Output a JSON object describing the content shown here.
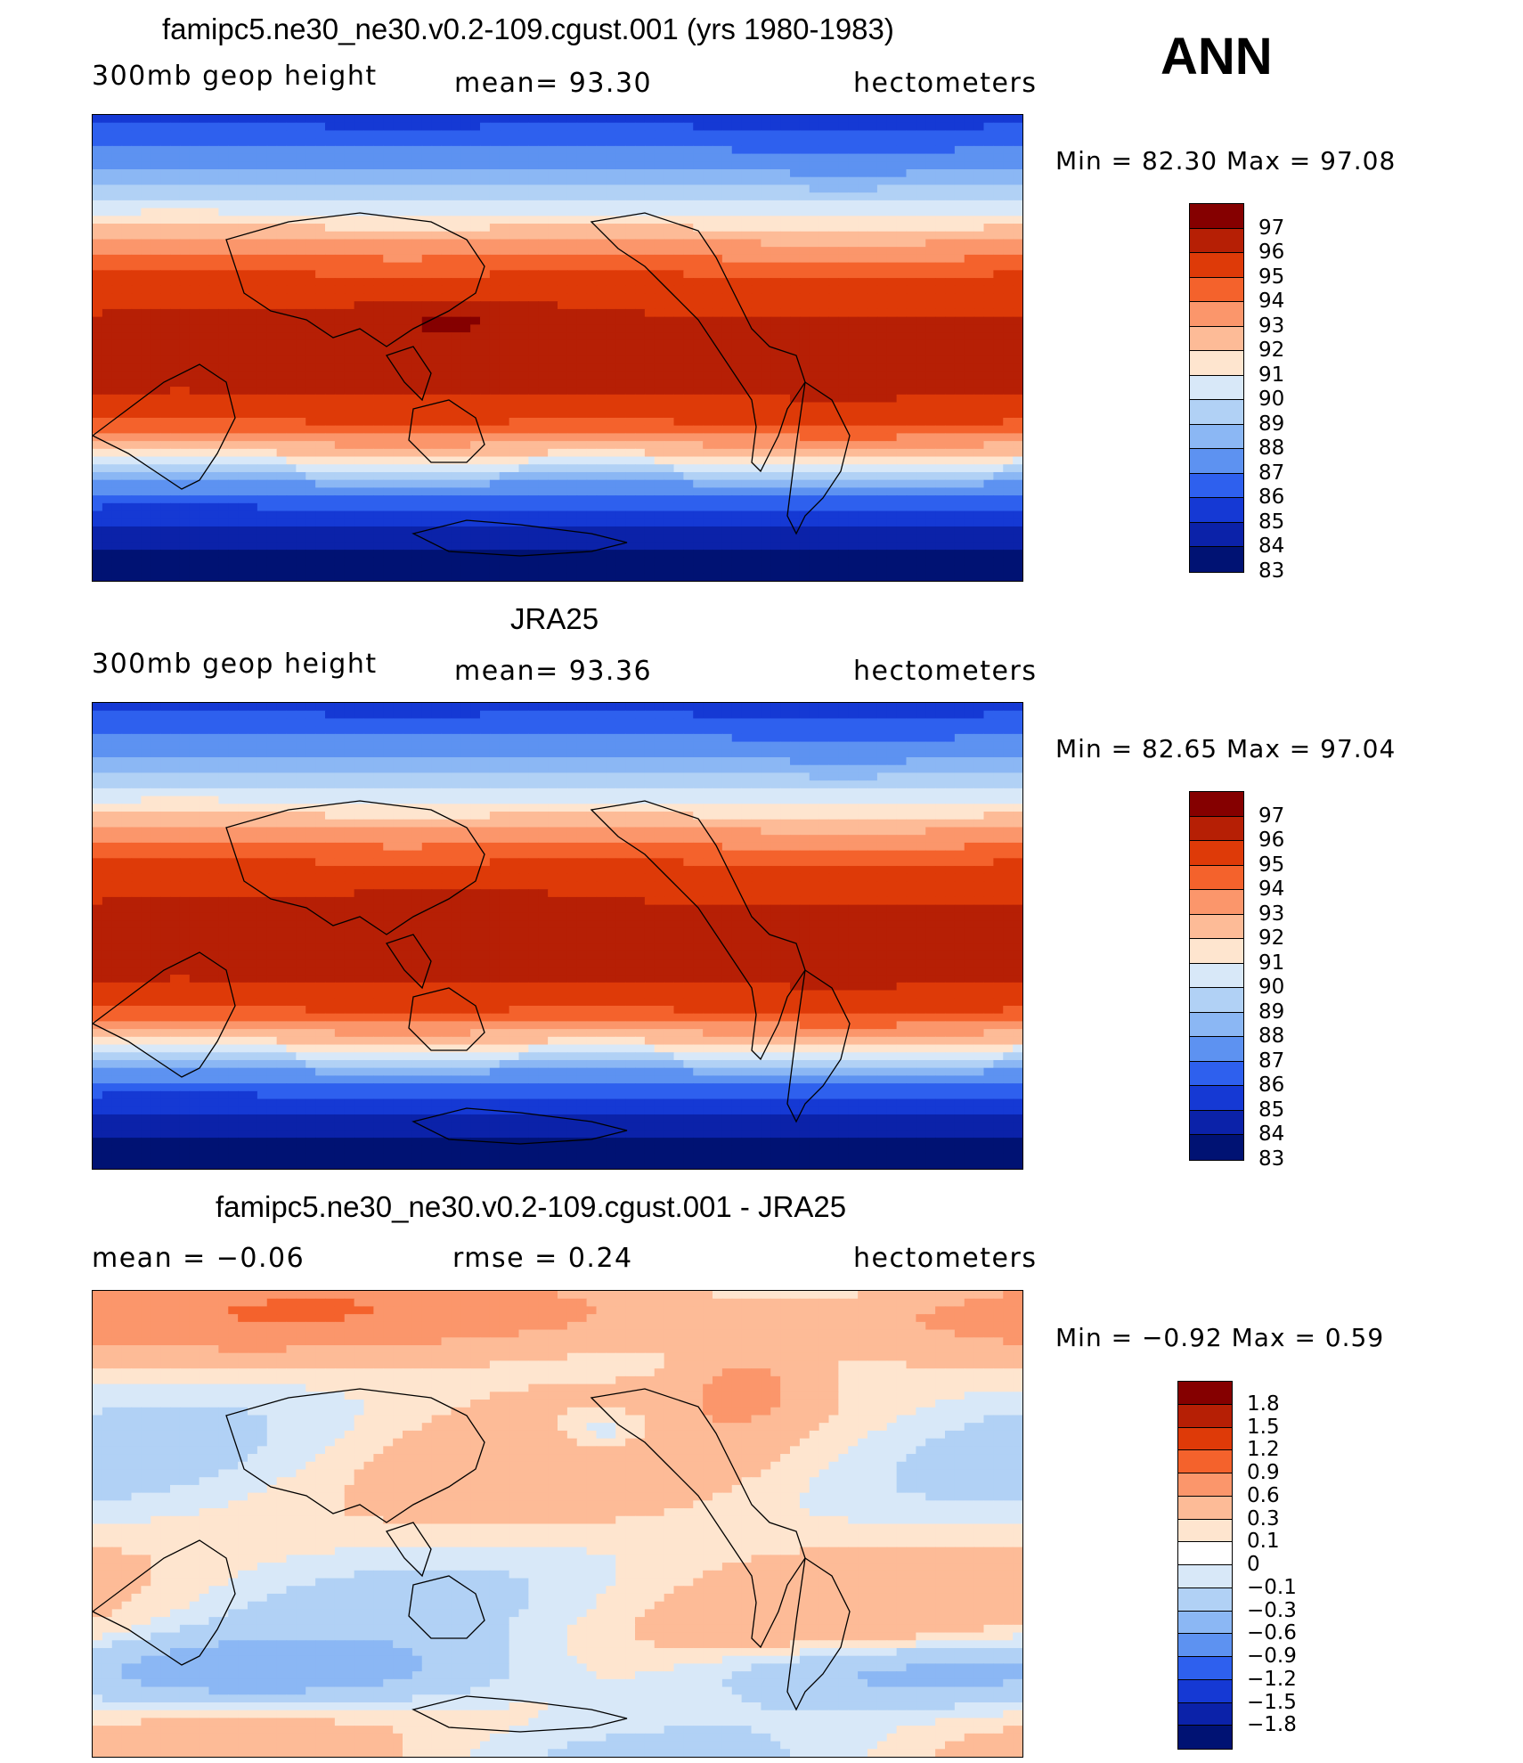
{
  "overall": {
    "season": "ANN"
  },
  "panels": [
    {
      "title": "famipc5.ne30_ne30.v0.2-109.cgust.001 (yrs 1980-1983)",
      "left_label": "300mb  geop  height",
      "center_label": "mean=   93.30",
      "right_label": "hectometers",
      "minmax": "Min  =    82.30  Max  =    97.08",
      "field": "model",
      "colorbar": {
        "colors": [
          "#850000",
          "#b61f05",
          "#de3a08",
          "#f4622c",
          "#fb966b",
          "#fdbb97",
          "#fee5cf",
          "#d8e8f8",
          "#b1d1f5",
          "#8bb7f4",
          "#5d92f1",
          "#2e60ee",
          "#1539d4",
          "#0b22a9",
          "#001273"
        ],
        "labels": [
          "97",
          "96",
          "95",
          "94",
          "93",
          "92",
          "91",
          "90",
          "89",
          "88",
          "87",
          "86",
          "85",
          "84",
          "83"
        ]
      }
    },
    {
      "title": "JRA25",
      "left_label": "300mb  geop  height",
      "center_label": "mean=   93.36",
      "right_label": "hectometers",
      "minmax": "Min  =    82.65  Max  =    97.04",
      "field": "obs",
      "colorbar": {
        "colors": [
          "#850000",
          "#b61f05",
          "#de3a08",
          "#f4622c",
          "#fb966b",
          "#fdbb97",
          "#fee5cf",
          "#d8e8f8",
          "#b1d1f5",
          "#8bb7f4",
          "#5d92f1",
          "#2e60ee",
          "#1539d4",
          "#0b22a9",
          "#001273"
        ],
        "labels": [
          "97",
          "96",
          "95",
          "94",
          "93",
          "92",
          "91",
          "90",
          "89",
          "88",
          "87",
          "86",
          "85",
          "84",
          "83"
        ]
      }
    },
    {
      "title": "famipc5.ne30_ne30.v0.2-109.cgust.001 - JRA25",
      "left_label": "mean  =    −0.06",
      "center_label": "rmse  =     0.24",
      "right_label": "hectometers",
      "minmax": "Min  =   −0.92  Max  =      0.59",
      "field": "diff",
      "colorbar": {
        "colors": [
          "#850000",
          "#b61f05",
          "#de3a08",
          "#f4622c",
          "#fb966b",
          "#fdbb97",
          "#fee5cf",
          "#ffffff",
          "#d8e8f8",
          "#b1d1f5",
          "#8bb7f4",
          "#5d92f1",
          "#2e60ee",
          "#1539d4",
          "#0b22a9",
          "#001273"
        ],
        "labels": [
          "1.8",
          "1.5",
          "1.2",
          "0.9",
          "0.6",
          "0.3",
          "0.1",
          "0",
          "−0.1",
          "−0.3",
          "−0.6",
          "−0.9",
          "−1.2",
          "−1.5",
          "−1.8"
        ]
      }
    }
  ]
}
